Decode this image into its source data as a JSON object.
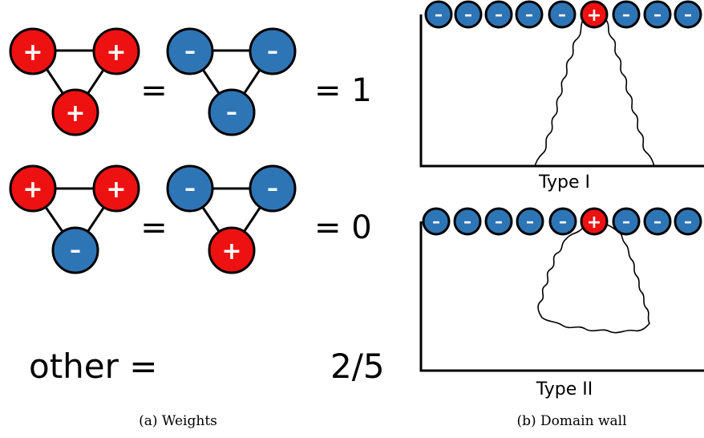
{
  "colors": {
    "plus": "#ee1111",
    "minus": "#2e75b6",
    "stroke": "#000000",
    "text": "#ffffff"
  },
  "signs": {
    "plus": "+",
    "minus": "–"
  },
  "weights": {
    "row1": {
      "eq": "=",
      "value": "= 1"
    },
    "row2": {
      "eq": "=",
      "value": "= 0"
    },
    "other": {
      "label": "other =",
      "value": "2/5"
    },
    "caption": "(a) Weights"
  },
  "domain_wall": {
    "type1_label": "Type I",
    "type2_label": "Type II",
    "caption": "(b) Domain wall"
  }
}
